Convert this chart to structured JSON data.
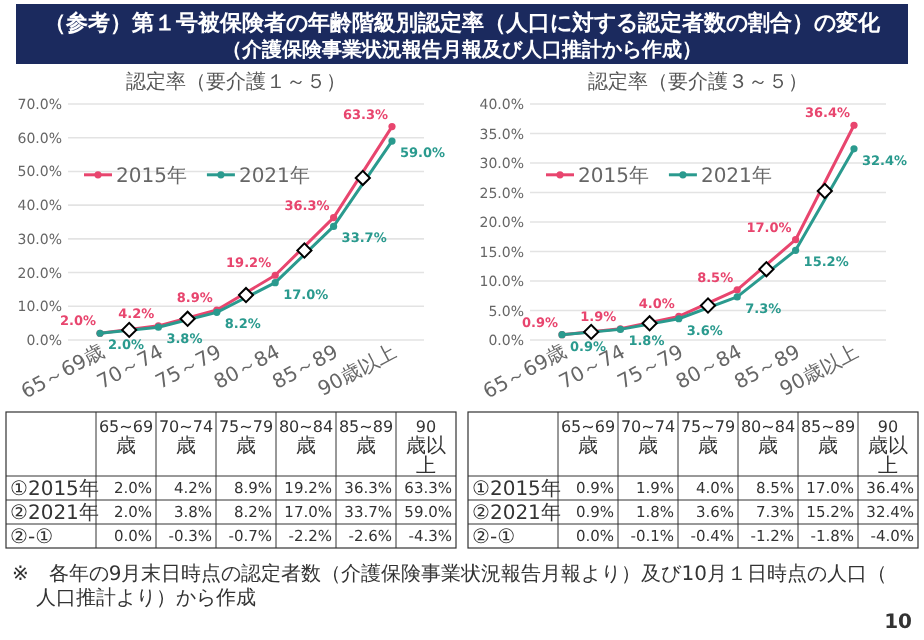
{
  "chart_data": [
    {
      "type": "line",
      "title": "認定率（要介護１～５）",
      "categories": [
        "65～69歳",
        "70～74",
        "75～79",
        "80～84",
        "85～89",
        "90歳以上"
      ],
      "series": [
        {
          "name": "2015年",
          "color": "#e8456e",
          "values": [
            2.0,
            4.2,
            8.9,
            19.2,
            36.3,
            63.3
          ],
          "value_labels": [
            "2.0%",
            "4.2%",
            "8.9%",
            "19.2%",
            "36.3%",
            "63.3%"
          ]
        },
        {
          "name": "2021年",
          "color": "#2a9a8e",
          "values": [
            2.0,
            3.8,
            8.2,
            17.0,
            33.7,
            59.0
          ],
          "value_labels": [
            "2.0%",
            "3.8%",
            "8.2%",
            "17.0%",
            "33.7%",
            "59.0%"
          ]
        }
      ],
      "ylim": [
        0,
        70
      ],
      "yticks": [
        {
          "value": 0,
          "label": "0.0%"
        },
        {
          "value": 10,
          "label": "10.0%"
        },
        {
          "value": 20,
          "label": "20.0%"
        },
        {
          "value": 30,
          "label": "30.0%"
        },
        {
          "value": 40,
          "label": "40.0%"
        },
        {
          "value": 50,
          "label": "50.0%"
        },
        {
          "value": 60,
          "label": "60.0%"
        },
        {
          "value": 70,
          "label": "70.0%"
        }
      ],
      "grid": "y",
      "legend": "left",
      "marker": "circle",
      "annotations": [
        "（参考）第１号被保険者の年齢階級別認定率（人口に対する認定者数の割合）の変化",
        "（介護保険事業状況報告月報及び人口推計から作成）",
        "※　各年の9月末日時点の認定者数（介護保険事業状況報告月報より）及び10月１日時点の人口（人口推計より）から作成",
        "10",
        "65~69歳",
        "70~74歳",
        "75~79歳",
        "80~84歳",
        "85~89歳",
        "90歳以上",
        "①2015年",
        "②2021年",
        "②-①",
        "0.0%",
        "-0.3%",
        "-0.7%",
        "-2.2%",
        "-2.6%",
        "-4.3%"
      ]
    },
    {
      "type": "line",
      "title": "認定率（要介護３～５）",
      "categories": [
        "65～69歳",
        "70～74",
        "75～79",
        "80～84",
        "85～89",
        "90歳以上"
      ],
      "series": [
        {
          "name": "2015年",
          "color": "#e8456e",
          "values": [
            0.9,
            1.9,
            4.0,
            8.5,
            17.0,
            36.4
          ],
          "value_labels": [
            "0.9%",
            "1.9%",
            "4.0%",
            "8.5%",
            "17.0%",
            "36.4%"
          ]
        },
        {
          "name": "2021年",
          "color": "#2a9a8e",
          "values": [
            0.9,
            1.8,
            3.6,
            7.3,
            15.2,
            32.4
          ],
          "value_labels": [
            "0.9%",
            "1.8%",
            "3.6%",
            "7.3%",
            "15.2%",
            "32.4%"
          ]
        }
      ],
      "ylim": [
        0,
        40
      ],
      "yticks": [
        {
          "value": 0,
          "label": "0.0%"
        },
        {
          "value": 5,
          "label": "5.0%"
        },
        {
          "value": 10,
          "label": "10.0%"
        },
        {
          "value": 15,
          "label": "15.0%"
        },
        {
          "value": 20,
          "label": "20.0%"
        },
        {
          "value": 25,
          "label": "25.0%"
        },
        {
          "value": 30,
          "label": "30.0%"
        },
        {
          "value": 35,
          "label": "35.0%"
        },
        {
          "value": 40,
          "label": "40.0%"
        }
      ],
      "grid": "y",
      "legend": "left",
      "marker": "circle",
      "annotations": [
        "65~69歳",
        "70~74歳",
        "75~79歳",
        "80~84歳",
        "85~89歳",
        "90歳以上",
        "①2015年",
        "②2021年",
        "②-①",
        "0.0%",
        "-0.1%",
        "-0.4%",
        "-1.2%",
        "-1.8%",
        "-4.0%"
      ]
    }
  ]
}
